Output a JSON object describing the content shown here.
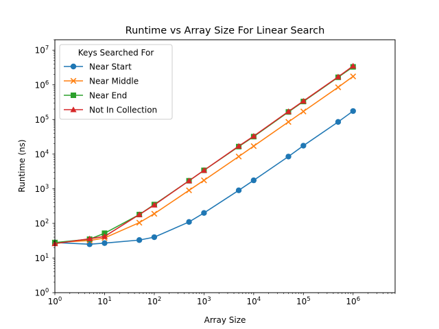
{
  "chart_data": {
    "type": "line",
    "title": "Runtime vs Array Size For Linear Search",
    "xlabel": "Array Size",
    "ylabel": "Runtime (ns)",
    "xscale": "log",
    "yscale": "log",
    "xlim": [
      1,
      7000000
    ],
    "ylim": [
      1,
      20000000
    ],
    "xticks": [
      {
        "value": 1,
        "base": "10",
        "exp": "0"
      },
      {
        "value": 10,
        "base": "10",
        "exp": "1"
      },
      {
        "value": 100,
        "base": "10",
        "exp": "2"
      },
      {
        "value": 1000,
        "base": "10",
        "exp": "3"
      },
      {
        "value": 10000,
        "base": "10",
        "exp": "4"
      },
      {
        "value": 100000,
        "base": "10",
        "exp": "5"
      },
      {
        "value": 1000000,
        "base": "10",
        "exp": "6"
      }
    ],
    "yticks": [
      {
        "value": 1,
        "base": "10",
        "exp": "0"
      },
      {
        "value": 10,
        "base": "10",
        "exp": "1"
      },
      {
        "value": 100,
        "base": "10",
        "exp": "2"
      },
      {
        "value": 1000,
        "base": "10",
        "exp": "3"
      },
      {
        "value": 10000,
        "base": "10",
        "exp": "4"
      },
      {
        "value": 100000,
        "base": "10",
        "exp": "5"
      },
      {
        "value": 1000000,
        "base": "10",
        "exp": "6"
      },
      {
        "value": 10000000,
        "base": "10",
        "exp": "7"
      }
    ],
    "grid": false,
    "legend": {
      "title": "Keys Searched For",
      "position": "top-left"
    },
    "x": [
      1,
      5,
      10,
      50,
      100,
      500,
      1000,
      5000,
      10000,
      50000,
      100000,
      500000,
      1000000
    ],
    "series": [
      {
        "name": "Near Start",
        "color": "#1f77b4",
        "marker": "circle",
        "values": [
          28,
          25,
          27,
          33,
          40,
          110,
          200,
          900,
          1750,
          8500,
          17500,
          85000,
          175000
        ]
      },
      {
        "name": "Near Middle",
        "color": "#ff7f0e",
        "marker": "x",
        "values": [
          28,
          32,
          38,
          105,
          190,
          900,
          1750,
          8500,
          17000,
          85000,
          170000,
          850000,
          1750000
        ]
      },
      {
        "name": "Near End",
        "color": "#2ca02c",
        "marker": "square",
        "values": [
          28,
          35,
          52,
          180,
          350,
          1700,
          3400,
          16500,
          32000,
          165000,
          330000,
          1650000,
          3300000
        ]
      },
      {
        "name": "Not In Collection",
        "color": "#d62728",
        "marker": "triangle",
        "values": [
          26,
          36,
          42,
          180,
          340,
          1700,
          3400,
          17000,
          33000,
          170000,
          340000,
          1700000,
          3500000
        ]
      }
    ]
  }
}
